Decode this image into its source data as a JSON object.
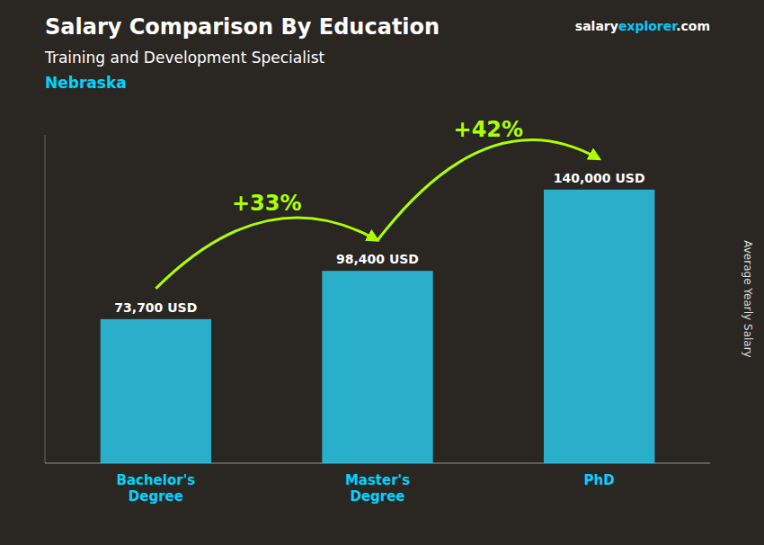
{
  "chart_data": {
    "type": "bar",
    "title": "Salary Comparison By Education",
    "subtitle": "Training and Development Specialist",
    "location": "Nebraska",
    "website": [
      "salary",
      "explorer",
      ".com"
    ],
    "ylabel": "Average Yearly Salary",
    "categories": [
      "Bachelor's\nDegree",
      "Master's\nDegree",
      "PhD"
    ],
    "values": [
      73700,
      98400,
      140000
    ],
    "value_labels": [
      "73,700 USD",
      "98,400 USD",
      "140,000 USD"
    ],
    "data_labels": true,
    "color": "#29c8e8",
    "annotations": [
      {
        "text": "+33%",
        "color": "#aaff00"
      },
      {
        "text": "+42%",
        "color": "#aaff00"
      }
    ],
    "ylim": [
      0,
      168000
    ],
    "grid": false,
    "tick_labels": "x"
  }
}
